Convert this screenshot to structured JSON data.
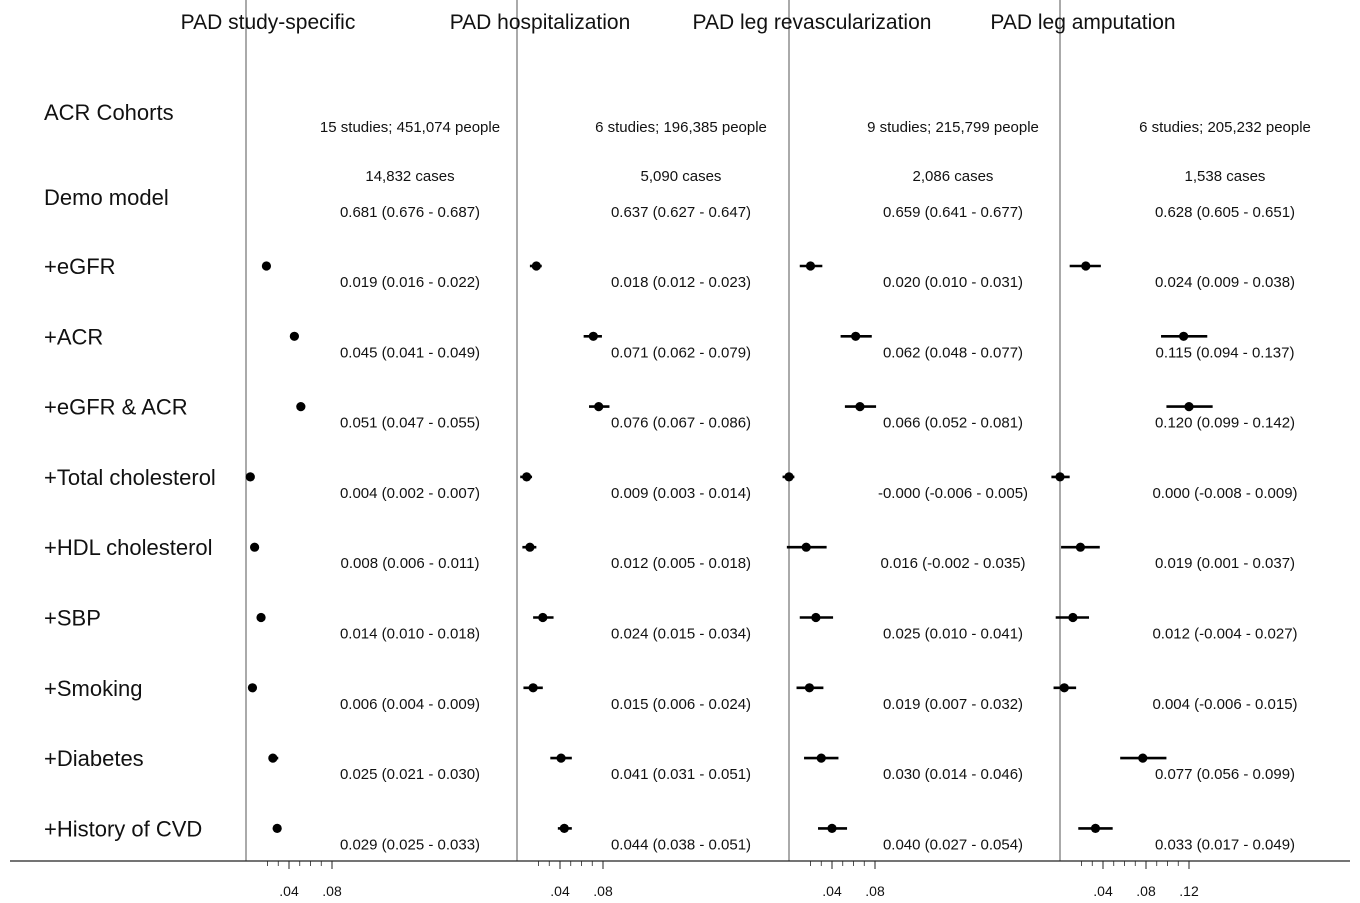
{
  "chart_data": {
    "type": "forest",
    "row_labels": [
      "ACR Cohorts",
      "Demo model",
      "+eGFR",
      "+ACR",
      "+eGFR & ACR",
      "+Total cholesterol",
      "+HDL cholesterol",
      "+SBP",
      "+Smoking",
      "+Diabetes",
      "+History of CVD"
    ],
    "panels": [
      {
        "title": "PAD study-specific",
        "studies_text": "15 studies; 451,074 people",
        "cases_text": "14,832 cases",
        "demo_text": "0.681 (0.676 - 0.687)",
        "x_ticks": [
          {
            "value": 0.04,
            "label": ".04"
          },
          {
            "value": 0.08,
            "label": ".08"
          }
        ],
        "xlim": [
          0,
          0.275
        ],
        "estimates": [
          {
            "label": "+eGFR",
            "est": 0.019,
            "lo": 0.016,
            "hi": 0.022,
            "text": "0.019 (0.016 - 0.022)"
          },
          {
            "label": "+ACR",
            "est": 0.045,
            "lo": 0.041,
            "hi": 0.049,
            "text": "0.045 (0.041 - 0.049)"
          },
          {
            "label": "+eGFR & ACR",
            "est": 0.051,
            "lo": 0.047,
            "hi": 0.055,
            "text": "0.051 (0.047 - 0.055)"
          },
          {
            "label": "+Total cholesterol",
            "est": 0.004,
            "lo": 0.002,
            "hi": 0.007,
            "text": "0.004 (0.002 - 0.007)"
          },
          {
            "label": "+HDL cholesterol",
            "est": 0.008,
            "lo": 0.006,
            "hi": 0.011,
            "text": "0.008 (0.006 - 0.011)"
          },
          {
            "label": "+SBP",
            "est": 0.014,
            "lo": 0.01,
            "hi": 0.018,
            "text": "0.014 (0.010 - 0.018)"
          },
          {
            "label": "+Smoking",
            "est": 0.006,
            "lo": 0.004,
            "hi": 0.009,
            "text": "0.006 (0.004 - 0.009)"
          },
          {
            "label": "+Diabetes",
            "est": 0.025,
            "lo": 0.021,
            "hi": 0.03,
            "text": "0.025 (0.021 - 0.030)"
          },
          {
            "label": "+History of CVD",
            "est": 0.029,
            "lo": 0.025,
            "hi": 0.033,
            "text": "0.029 (0.025 - 0.033)"
          }
        ]
      },
      {
        "title": "PAD hospitalization",
        "studies_text": "6 studies; 196,385 people",
        "cases_text": "5,090 cases",
        "demo_text": "0.637 (0.627 - 0.647)",
        "x_ticks": [
          {
            "value": 0.04,
            "label": ".04"
          },
          {
            "value": 0.08,
            "label": ".08"
          }
        ],
        "xlim": [
          0,
          0.275
        ],
        "estimates": [
          {
            "label": "+eGFR",
            "est": 0.018,
            "lo": 0.012,
            "hi": 0.023,
            "text": "0.018 (0.012 - 0.023)"
          },
          {
            "label": "+ACR",
            "est": 0.071,
            "lo": 0.062,
            "hi": 0.079,
            "text": "0.071 (0.062 - 0.079)"
          },
          {
            "label": "+eGFR & ACR",
            "est": 0.076,
            "lo": 0.067,
            "hi": 0.086,
            "text": "0.076 (0.067 - 0.086)"
          },
          {
            "label": "+Total cholesterol",
            "est": 0.009,
            "lo": 0.003,
            "hi": 0.014,
            "text": "0.009 (0.003 - 0.014)"
          },
          {
            "label": "+HDL cholesterol",
            "est": 0.012,
            "lo": 0.005,
            "hi": 0.018,
            "text": "0.012 (0.005 - 0.018)"
          },
          {
            "label": "+SBP",
            "est": 0.024,
            "lo": 0.015,
            "hi": 0.034,
            "text": "0.024 (0.015 - 0.034)"
          },
          {
            "label": "+Smoking",
            "est": 0.015,
            "lo": 0.006,
            "hi": 0.024,
            "text": "0.015 (0.006 - 0.024)"
          },
          {
            "label": "+Diabetes",
            "est": 0.041,
            "lo": 0.031,
            "hi": 0.051,
            "text": "0.041 (0.031 - 0.051)"
          },
          {
            "label": "+History of CVD",
            "est": 0.044,
            "lo": 0.038,
            "hi": 0.051,
            "text": "0.044 (0.038 - 0.051)"
          }
        ]
      },
      {
        "title": "PAD leg revascularization",
        "studies_text": "9 studies; 215,799 people",
        "cases_text": "2,086 cases",
        "demo_text": "0.659 (0.641 - 0.677)",
        "x_ticks": [
          {
            "value": 0.04,
            "label": ".04"
          },
          {
            "value": 0.08,
            "label": ".08"
          }
        ],
        "xlim": [
          0,
          0.275
        ],
        "estimates": [
          {
            "label": "+eGFR",
            "est": 0.02,
            "lo": 0.01,
            "hi": 0.031,
            "text": "0.020 (0.010 - 0.031)"
          },
          {
            "label": "+ACR",
            "est": 0.062,
            "lo": 0.048,
            "hi": 0.077,
            "text": "0.062 (0.048 - 0.077)"
          },
          {
            "label": "+eGFR & ACR",
            "est": 0.066,
            "lo": 0.052,
            "hi": 0.081,
            "text": "0.066 (0.052 - 0.081)"
          },
          {
            "label": "+Total cholesterol",
            "est": -0.0,
            "lo": -0.006,
            "hi": 0.005,
            "text": "-0.000 (-0.006 - 0.005)"
          },
          {
            "label": "+HDL cholesterol",
            "est": 0.016,
            "lo": -0.002,
            "hi": 0.035,
            "text": "0.016 (-0.002 - 0.035)"
          },
          {
            "label": "+SBP",
            "est": 0.025,
            "lo": 0.01,
            "hi": 0.041,
            "text": "0.025 (0.010 - 0.041)"
          },
          {
            "label": "+Smoking",
            "est": 0.019,
            "lo": 0.007,
            "hi": 0.032,
            "text": "0.019 (0.007 - 0.032)"
          },
          {
            "label": "+Diabetes",
            "est": 0.03,
            "lo": 0.014,
            "hi": 0.046,
            "text": "0.030 (0.014 - 0.046)"
          },
          {
            "label": "+History of CVD",
            "est": 0.04,
            "lo": 0.027,
            "hi": 0.054,
            "text": "0.040 (0.027 - 0.054)"
          }
        ]
      },
      {
        "title": "PAD leg amputation",
        "studies_text": "6 studies; 205,232 people",
        "cases_text": "1,538 cases",
        "demo_text": "0.628 (0.605 - 0.651)",
        "x_ticks": [
          {
            "value": 0.04,
            "label": ".04"
          },
          {
            "value": 0.08,
            "label": ".08"
          },
          {
            "value": 0.12,
            "label": ".12"
          }
        ],
        "xlim": [
          0,
          0.275
        ],
        "estimates": [
          {
            "label": "+eGFR",
            "est": 0.024,
            "lo": 0.009,
            "hi": 0.038,
            "text": "0.024 (0.009 - 0.038)"
          },
          {
            "label": "+ACR",
            "est": 0.115,
            "lo": 0.094,
            "hi": 0.137,
            "text": "0.115 (0.094 - 0.137)"
          },
          {
            "label": "+eGFR & ACR",
            "est": 0.12,
            "lo": 0.099,
            "hi": 0.142,
            "text": "0.120 (0.099 - 0.142)"
          },
          {
            "label": "+Total cholesterol",
            "est": 0.0,
            "lo": -0.008,
            "hi": 0.009,
            "text": "0.000 (-0.008 - 0.009)"
          },
          {
            "label": "+HDL cholesterol",
            "est": 0.019,
            "lo": 0.001,
            "hi": 0.037,
            "text": "0.019 (0.001 - 0.037)"
          },
          {
            "label": "+SBP",
            "est": 0.012,
            "lo": -0.004,
            "hi": 0.027,
            "text": "0.012 (-0.004 - 0.027)"
          },
          {
            "label": "+Smoking",
            "est": 0.004,
            "lo": -0.006,
            "hi": 0.015,
            "text": "0.004 (-0.006 - 0.015)"
          },
          {
            "label": "+Diabetes",
            "est": 0.077,
            "lo": 0.056,
            "hi": 0.099,
            "text": "0.077 (0.056 - 0.099)"
          },
          {
            "label": "+History of CVD",
            "est": 0.033,
            "lo": 0.017,
            "hi": 0.049,
            "text": "0.033 (0.017 - 0.049)"
          }
        ]
      }
    ]
  }
}
